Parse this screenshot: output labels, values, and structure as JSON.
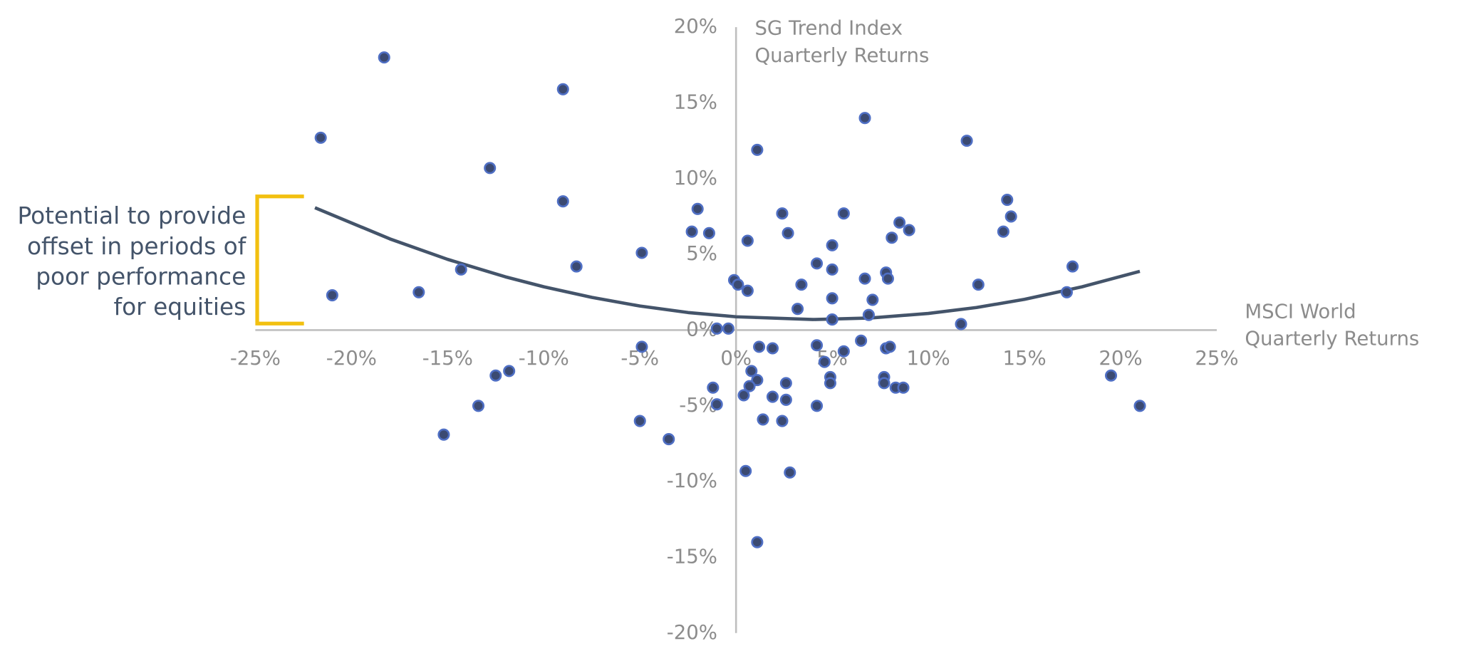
{
  "chart_data": {
    "type": "scatter",
    "x_title": [
      "MSCI World",
      "Quarterly Returns"
    ],
    "y_title": [
      "SG Trend Index",
      "Quarterly Returns"
    ],
    "annotation": [
      "Potential to provide",
      "offset in periods of",
      "poor performance",
      "for equities"
    ],
    "color": "#3b4a72",
    "edge_color": "#4f6fc4",
    "x": [
      -18.3,
      -9.0,
      -21.6,
      -12.8,
      -9.0,
      -8.3,
      -21.0,
      -16.5,
      -14.3,
      -4.9,
      -4.9,
      -5.0,
      -3.5,
      -12.5,
      -11.8,
      -13.4,
      -15.2,
      -2.0,
      -2.3,
      -1.4,
      -1.0,
      -0.4,
      -1.2,
      -1.0,
      -0.1,
      0.1,
      0.6,
      0.6,
      1.1,
      1.2,
      1.9,
      0.8,
      1.1,
      0.7,
      0.4,
      1.9,
      2.6,
      2.6,
      1.4,
      2.4,
      0.5,
      2.8,
      1.1,
      2.4,
      2.7,
      3.4,
      3.2,
      4.2,
      4.2,
      4.2,
      4.6,
      5.0,
      5.0,
      5.0,
      5.0,
      4.9,
      4.9,
      5.6,
      5.6,
      6.5,
      6.7,
      6.7,
      6.9,
      7.1,
      8.5,
      9.0,
      8.1,
      7.8,
      7.9,
      7.8,
      8.0,
      7.7,
      7.7,
      8.3,
      8.7,
      12.0,
      12.6,
      11.7,
      14.1,
      14.3,
      13.9,
      17.2,
      17.5,
      19.5,
      21.0
    ],
    "values": [
      18.0,
      15.9,
      12.7,
      10.7,
      8.5,
      4.2,
      2.3,
      2.5,
      4.0,
      5.1,
      -1.1,
      -6.0,
      -7.2,
      -3.0,
      -2.7,
      -5.0,
      -6.9,
      8.0,
      6.5,
      6.4,
      0.1,
      0.1,
      -3.8,
      -4.9,
      3.3,
      3.0,
      2.6,
      5.9,
      11.9,
      -1.1,
      -1.2,
      -2.7,
      -3.3,
      -3.7,
      -4.3,
      -4.4,
      -3.5,
      -4.6,
      -5.9,
      -6.0,
      -9.3,
      -9.4,
      -14.0,
      7.7,
      6.4,
      3.0,
      1.4,
      4.4,
      -1.0,
      -5.0,
      -2.1,
      5.6,
      4.0,
      2.1,
      0.7,
      -3.1,
      -3.5,
      7.7,
      -1.4,
      -0.7,
      14.0,
      3.4,
      1.0,
      2.0,
      7.1,
      6.6,
      6.1,
      3.8,
      3.4,
      -1.2,
      -1.1,
      -3.1,
      -3.5,
      -3.8,
      -3.8,
      12.5,
      3.0,
      0.4,
      8.6,
      7.5,
      6.5,
      2.5,
      4.2,
      -3.0,
      -5.0
    ],
    "trendline": {
      "color": "#44546a",
      "x": [
        -21.9,
        -18,
        -15,
        -12,
        -10,
        -7.5,
        -5,
        -2.5,
        0,
        4,
        7,
        10,
        12.5,
        15,
        18,
        21
      ],
      "values": [
        8.08,
        6.02,
        4.67,
        3.52,
        2.86,
        2.16,
        1.59,
        1.16,
        0.88,
        0.7,
        0.8,
        1.1,
        1.49,
        2.03,
        2.86,
        3.88
      ]
    },
    "xlim": [
      -25,
      25
    ],
    "ylim": [
      -20,
      20
    ],
    "xticks": [
      {
        "value": -25,
        "label": "-25%"
      },
      {
        "value": -20,
        "label": "-20%"
      },
      {
        "value": -15,
        "label": "-15%"
      },
      {
        "value": -10,
        "label": "-10%"
      },
      {
        "value": -5,
        "label": "-5%"
      },
      {
        "value": 0,
        "label": "0%"
      },
      {
        "value": 5,
        "label": "5%"
      },
      {
        "value": 10,
        "label": "10%"
      },
      {
        "value": 15,
        "label": "15%"
      },
      {
        "value": 20,
        "label": "20%"
      },
      {
        "value": 25,
        "label": "25%"
      }
    ],
    "yticks": [
      {
        "value": -20,
        "label": "-20%"
      },
      {
        "value": -15,
        "label": "-15%"
      },
      {
        "value": -10,
        "label": "-10%"
      },
      {
        "value": -5,
        "label": "-5%"
      },
      {
        "value": 0,
        "label": "0%"
      },
      {
        "value": 5,
        "label": "5%"
      },
      {
        "value": 10,
        "label": "10%"
      },
      {
        "value": 15,
        "label": "15%"
      },
      {
        "value": 20,
        "label": "20%"
      }
    ]
  }
}
